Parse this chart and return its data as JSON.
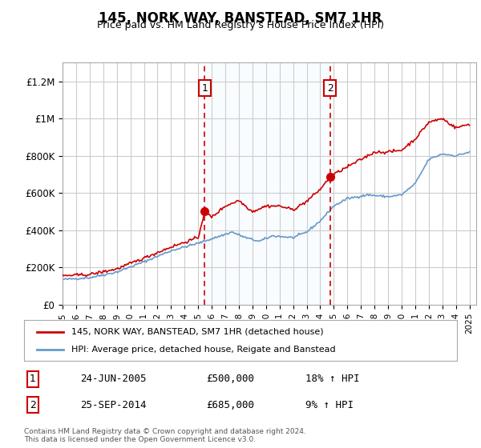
{
  "title": "145, NORK WAY, BANSTEAD, SM7 1HR",
  "subtitle": "Price paid vs. HM Land Registry's House Price Index (HPI)",
  "ylabel_ticks": [
    "£0",
    "£200K",
    "£400K",
    "£600K",
    "£800K",
    "£1M",
    "£1.2M"
  ],
  "ytick_values": [
    0,
    200000,
    400000,
    600000,
    800000,
    1000000,
    1200000
  ],
  "ylim": [
    0,
    1300000
  ],
  "xlim_start": 1995.0,
  "xlim_end": 2025.5,
  "background_color": "#ffffff",
  "plot_bg_color": "#ffffff",
  "grid_color": "#cccccc",
  "hpi_shading_color": "#ddeeff",
  "red_line_color": "#cc0000",
  "blue_line_color": "#6699cc",
  "dashed_red_color": "#cc0000",
  "event1_x": 2005.48,
  "event1_y": 500000,
  "event2_x": 2014.73,
  "event2_y": 685000,
  "event1_label": "1",
  "event2_label": "2",
  "legend_line1": "145, NORK WAY, BANSTEAD, SM7 1HR (detached house)",
  "legend_line2": "HPI: Average price, detached house, Reigate and Banstead",
  "annotation1_num": "1",
  "annotation1_date": "24-JUN-2005",
  "annotation1_price": "£500,000",
  "annotation1_hpi": "18% ↑ HPI",
  "annotation2_num": "2",
  "annotation2_date": "25-SEP-2014",
  "annotation2_price": "£685,000",
  "annotation2_hpi": "9% ↑ HPI",
  "footer": "Contains HM Land Registry data © Crown copyright and database right 2024.\nThis data is licensed under the Open Government Licence v3.0.",
  "xtick_years": [
    1995,
    1996,
    1997,
    1998,
    1999,
    2000,
    2001,
    2002,
    2003,
    2004,
    2005,
    2006,
    2007,
    2008,
    2009,
    2010,
    2011,
    2012,
    2013,
    2014,
    2015,
    2016,
    2017,
    2018,
    2019,
    2020,
    2021,
    2022,
    2023,
    2024,
    2025
  ]
}
